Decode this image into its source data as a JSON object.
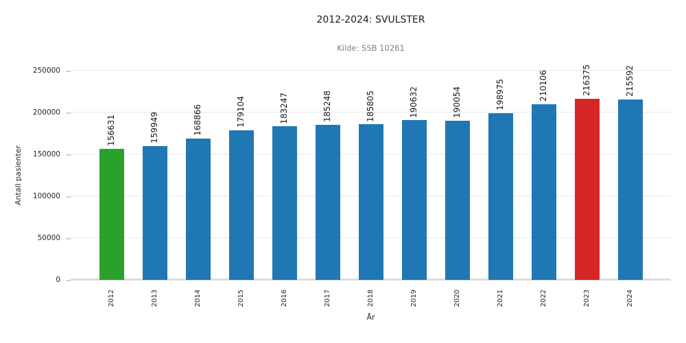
{
  "chart_data": {
    "type": "bar",
    "title": "2012-2024: SVULSTER",
    "subtitle": "Kilde: SSB 10261",
    "xlabel": "År",
    "ylabel": "Antall pasienter",
    "categories": [
      "2012",
      "2013",
      "2014",
      "2015",
      "2016",
      "2017",
      "2018",
      "2019",
      "2020",
      "2021",
      "2022",
      "2023",
      "2024"
    ],
    "values": [
      156631,
      159949,
      168866,
      179104,
      183247,
      185248,
      185805,
      190632,
      190054,
      198975,
      210106,
      216375,
      215592
    ],
    "value_labels": [
      "156631",
      "159949",
      "168866",
      "179104",
      "183247",
      "185248",
      "185805",
      "190632",
      "190054",
      "198975",
      "210106",
      "216375",
      "215592"
    ],
    "bar_colors": [
      "#2ca02c",
      "#1f77b4",
      "#1f77b4",
      "#1f77b4",
      "#1f77b4",
      "#1f77b4",
      "#1f77b4",
      "#1f77b4",
      "#1f77b4",
      "#1f77b4",
      "#1f77b4",
      "#d62728",
      "#1f77b4"
    ],
    "colors": {
      "default_bar": "#1f77b4",
      "first_year_highlight": "#2ca02c",
      "max_year_highlight": "#d62728",
      "gridline": "#e7e7e7",
      "axis_line": "#dcdcdc",
      "subtitle_text": "#7f7f7f",
      "text": "#262626"
    },
    "ylim": [
      0,
      250000
    ],
    "yticks": [
      0,
      50000,
      100000,
      150000,
      200000,
      250000
    ],
    "ytick_labels": [
      "0",
      "50000",
      "100000",
      "150000",
      "200000",
      "250000"
    ],
    "grid": true,
    "legend": "none",
    "label_rotation_deg": 90
  }
}
